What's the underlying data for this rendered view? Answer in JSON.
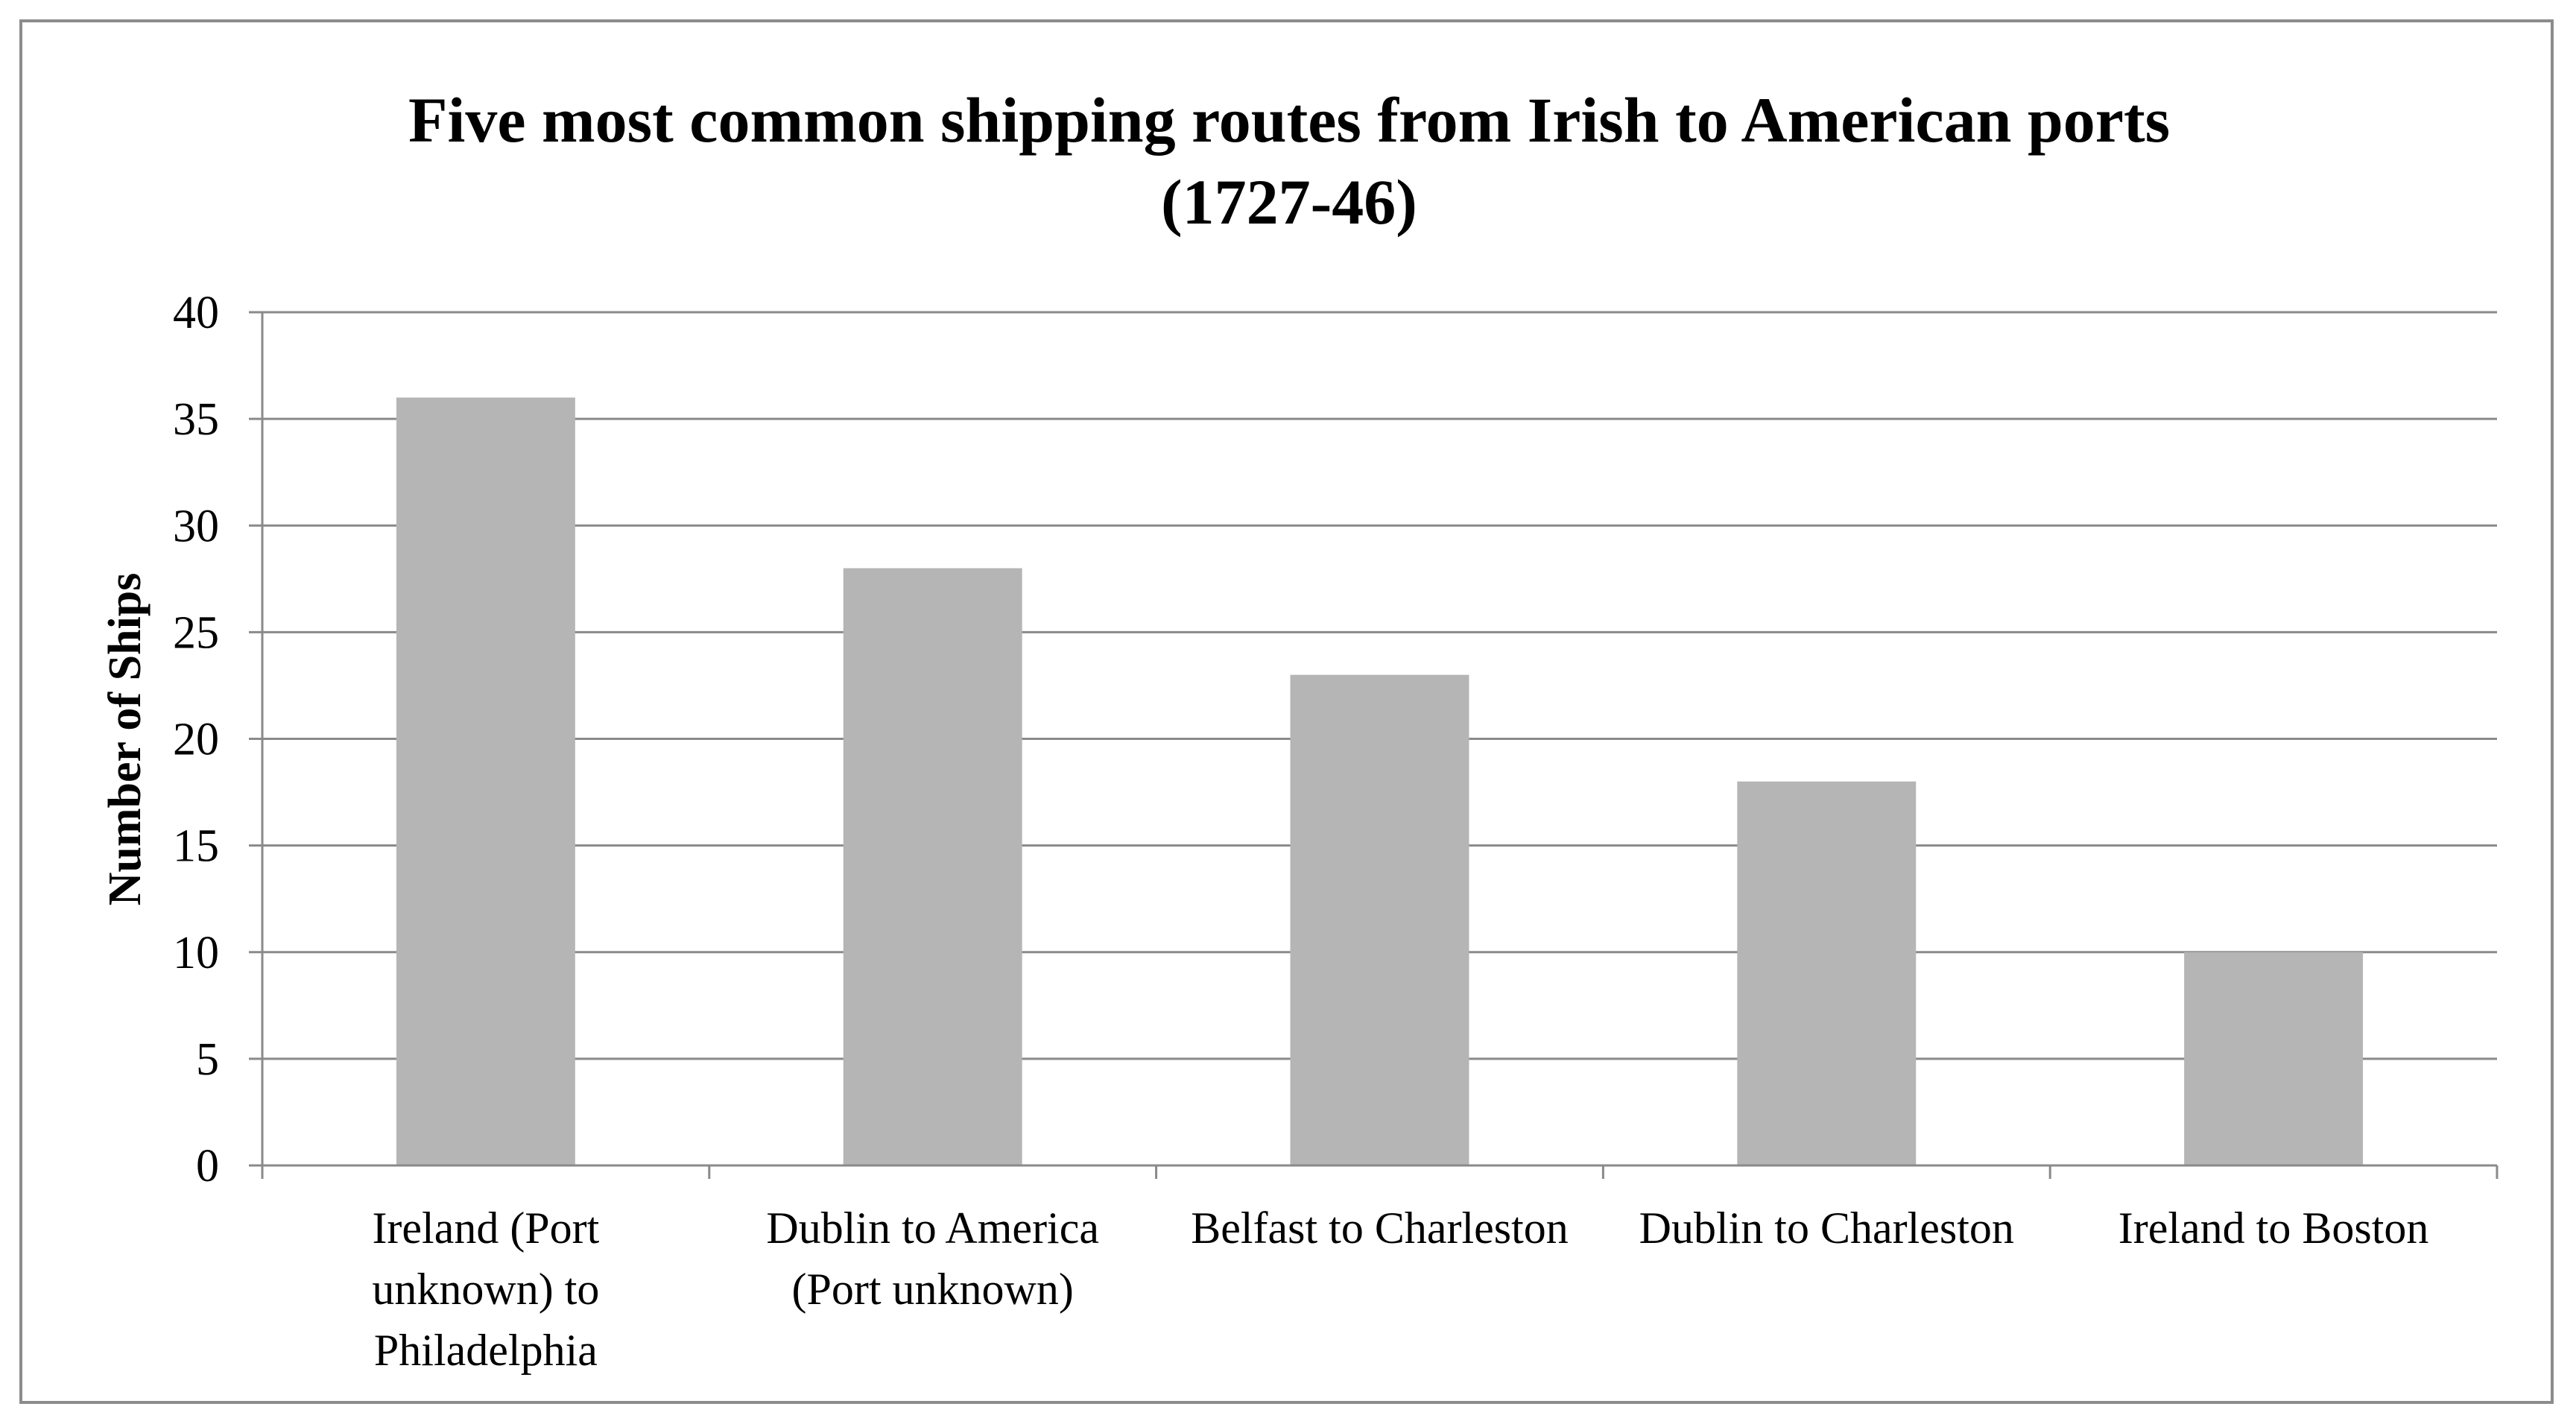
{
  "chart_data": {
    "type": "bar",
    "title": [
      "Five most common shipping routes from Irish to American ports",
      "(1727-46)"
    ],
    "xlabel": "",
    "ylabel": "Number of Ships",
    "ylim": [
      0,
      40
    ],
    "ytick_step": 5,
    "yticks": [
      "0",
      "5",
      "10",
      "15",
      "20",
      "25",
      "30",
      "35",
      "40"
    ],
    "grid": true,
    "legend": "none",
    "categories": [
      [
        "Ireland (Port",
        "unknown) to",
        "Philadelphia"
      ],
      [
        "Dublin to America",
        "(Port unknown)"
      ],
      [
        "Belfast to Charleston"
      ],
      [
        "Dublin to Charleston"
      ],
      [
        "Ireland to Boston"
      ]
    ],
    "values": [
      36,
      28,
      23,
      18,
      10
    ],
    "colors": {
      "bar": "#b5b5b5",
      "grid": "#8a8a8a",
      "frame": "#8c8c8c",
      "text": "#000000"
    }
  }
}
